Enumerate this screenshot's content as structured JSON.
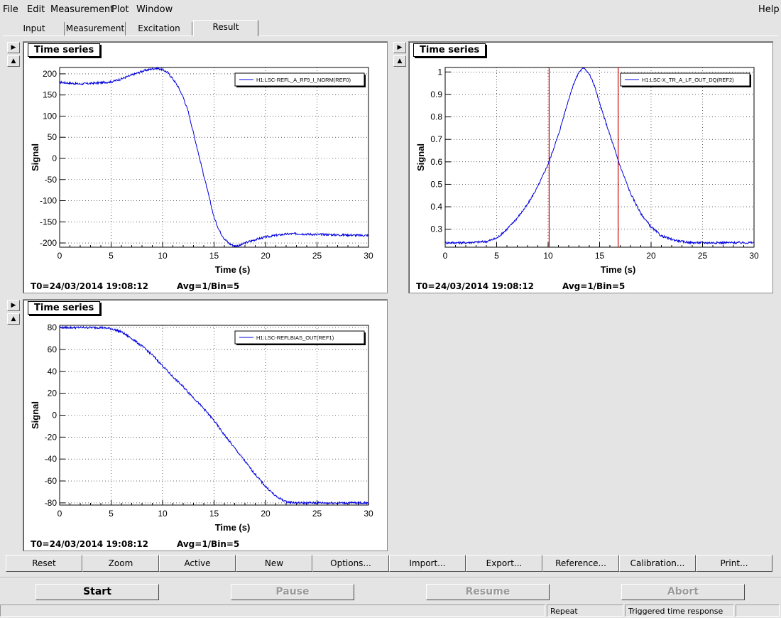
{
  "menu": {
    "file": "File",
    "edit": "Edit",
    "measurement": "Measurement",
    "plot": "Plot",
    "window": "Window",
    "help": "Help"
  },
  "tabs": [
    "Input",
    "Measurement",
    "Excitation",
    "Result"
  ],
  "active_tab": "Result",
  "panels": [
    {
      "title": "Time series",
      "t0": "T0=24/03/2014 19:08:12",
      "avg": "Avg=1/Bin=5"
    },
    {
      "title": "Time series",
      "t0": "T0=24/03/2014 19:08:12",
      "avg": "Avg=1/Bin=5"
    },
    {
      "title": "Time series",
      "t0": "T0=24/03/2014 19:08:12",
      "avg": "Avg=1/Bin=5"
    }
  ],
  "toolbar": [
    "Reset",
    "Zoom",
    "Active",
    "New",
    "Options...",
    "Import...",
    "Export...",
    "Reference...",
    "Calibration...",
    "Print..."
  ],
  "controls": {
    "start": "Start",
    "pause": "Pause",
    "resume": "Resume",
    "abort": "Abort"
  },
  "status": {
    "mode": "Repeat",
    "type": "Triggered time response"
  },
  "colors": {
    "trace": "#0000dd",
    "marker": "#cc0000"
  },
  "chart_data": [
    {
      "type": "line",
      "xlabel": "Time (s)",
      "ylabel": "Signal",
      "xlim": [
        0,
        30
      ],
      "ylim": [
        -210,
        215
      ],
      "xticks": [
        0,
        5,
        10,
        15,
        20,
        25,
        30
      ],
      "yticks": [
        -200,
        -150,
        -100,
        -50,
        0,
        50,
        100,
        150,
        200
      ],
      "legend": "H1:LSC-REFL_A_RF9_I_NORM(REF0)",
      "legend_position": "top-right",
      "grid": true,
      "series": [
        {
          "name": "H1:LSC-REFL_A_RF9_I_NORM(REF0)",
          "x": [
            0,
            2,
            4,
            5,
            6,
            7,
            8,
            9,
            9.5,
            10,
            10.5,
            11,
            11.5,
            12,
            12.5,
            13,
            13.5,
            14,
            14.5,
            15,
            15.5,
            16,
            16.5,
            17,
            17.5,
            18,
            19,
            20,
            21,
            22,
            23,
            24,
            25,
            26,
            27,
            28,
            29,
            30
          ],
          "y": [
            180,
            176,
            179,
            181,
            188,
            197,
            206,
            212,
            213,
            210,
            203,
            188,
            170,
            145,
            110,
            60,
            10,
            -40,
            -90,
            -140,
            -170,
            -190,
            -202,
            -207,
            -206,
            -200,
            -192,
            -186,
            -182,
            -179,
            -178,
            -179,
            -180,
            -180,
            -181,
            -181,
            -182,
            -182
          ]
        }
      ]
    },
    {
      "type": "line",
      "xlabel": "Time (s)",
      "ylabel": "Signal",
      "xlim": [
        0,
        30
      ],
      "ylim": [
        0.22,
        1.02
      ],
      "xticks": [
        0,
        5,
        10,
        15,
        20,
        25,
        30
      ],
      "yticks": [
        0.3,
        0.4,
        0.5,
        0.6,
        0.7,
        0.8,
        0.9,
        1
      ],
      "legend": "H1:LSC-X_TR_A_LF_OUT_DQ(REF2)",
      "legend_position": "top-right",
      "grid": true,
      "markers_x": [
        10.1,
        16.8
      ],
      "series": [
        {
          "name": "H1:LSC-X_TR_A_LF_OUT_DQ(REF2)",
          "x": [
            0,
            2,
            4,
            5,
            6,
            7,
            8,
            9,
            10,
            11,
            12,
            12.5,
            13,
            13.5,
            14,
            14.5,
            15,
            16,
            17,
            18,
            19,
            20,
            21,
            22,
            23,
            24,
            25,
            26,
            28,
            30
          ],
          "y": [
            0.24,
            0.24,
            0.245,
            0.26,
            0.3,
            0.35,
            0.41,
            0.49,
            0.59,
            0.72,
            0.88,
            0.95,
            1.0,
            1.02,
            0.99,
            0.94,
            0.86,
            0.72,
            0.58,
            0.46,
            0.37,
            0.31,
            0.27,
            0.255,
            0.245,
            0.24,
            0.24,
            0.24,
            0.24,
            0.24
          ]
        }
      ]
    },
    {
      "type": "line",
      "xlabel": "Time (s)",
      "ylabel": "Signal",
      "xlim": [
        0,
        30
      ],
      "ylim": [
        -82,
        82
      ],
      "xticks": [
        0,
        5,
        10,
        15,
        20,
        25,
        30
      ],
      "yticks": [
        -80,
        -60,
        -40,
        -20,
        0,
        20,
        40,
        60,
        80
      ],
      "legend": "H1:LSC-REFLBIAS_OUT(REF1)",
      "legend_position": "top-right",
      "grid": true,
      "series": [
        {
          "name": "H1:LSC-REFLBIAS_OUT(REF1)",
          "x": [
            0,
            2,
            4,
            5,
            6,
            7,
            8,
            9,
            10,
            11,
            12,
            13,
            14,
            15,
            16,
            17,
            18,
            19,
            20,
            21,
            22,
            23,
            24,
            26,
            28,
            30
          ],
          "y": [
            80,
            80,
            80,
            79,
            76,
            70,
            63,
            55,
            45,
            35,
            26,
            16,
            6,
            -5,
            -18,
            -30,
            -42,
            -54,
            -65,
            -74,
            -79,
            -80,
            -80,
            -80,
            -80,
            -80
          ]
        }
      ]
    }
  ]
}
